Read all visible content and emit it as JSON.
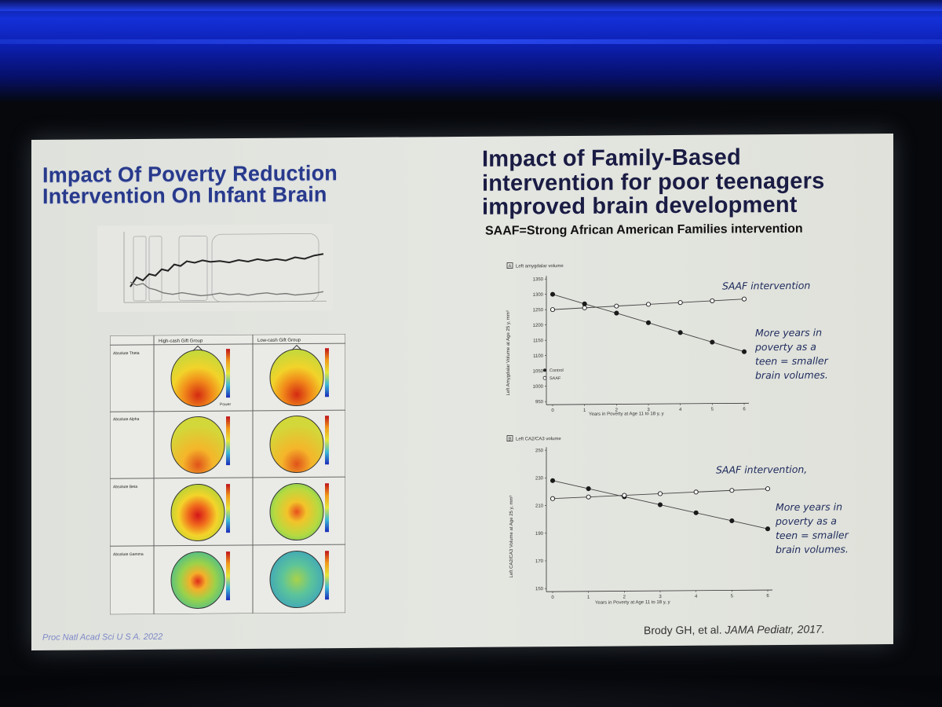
{
  "left_panel": {
    "title_line1": "Impact Of Poverty Reduction",
    "title_line2": "Intervention On Infant Brain",
    "topo_headers": [
      "High-cash Gift Group",
      "Low-cash Gift Group"
    ],
    "topo_rows": [
      "Absolute Theta",
      "Absolute Alpha",
      "Absolute Beta",
      "Absolute Gamma"
    ],
    "power_label": "Power",
    "citation": "Proc Natl Acad Sci U S A. 2022"
  },
  "right_panel": {
    "title_line1": "Impact of Family-Based",
    "title_line2": "intervention for poor teenagers",
    "title_line3": "improved brain development",
    "subtitle": "SAAF=Strong African American Families intervention",
    "citation_authors": "Brody GH, et al.",
    "citation_journal": "JAMA Pediatr,",
    "citation_year": "2017."
  },
  "colors": {
    "left_title": "#283a8c",
    "right_title": "#1a1c44",
    "annotation": "#1d2a5c"
  },
  "chart_data": [
    {
      "type": "line",
      "panel": "A",
      "title": "Left amygdalar volume",
      "xlabel": "Years in Poverty at Age 11 to 18 y, y",
      "ylabel": "Left Amygdalar Volume at Age 25 y, mm³",
      "x": [
        0,
        1,
        2,
        3,
        4,
        5,
        6
      ],
      "ylim": [
        950,
        1350
      ],
      "yticks": [
        950,
        1000,
        1050,
        1100,
        1150,
        1200,
        1250,
        1300,
        1350
      ],
      "series": [
        {
          "name": "Control",
          "marker": "filled",
          "values": [
            1300,
            1268,
            1237,
            1205,
            1172,
            1140,
            1108
          ]
        },
        {
          "name": "SAAF",
          "marker": "open",
          "values": [
            1250,
            1255,
            1260,
            1265,
            1270,
            1275,
            1280
          ]
        }
      ],
      "legend": [
        "Control",
        "SAAF"
      ],
      "annotations": [
        "SAAF intervention",
        "More years in",
        "poverty as a",
        "teen = smaller",
        "brain volumes."
      ]
    },
    {
      "type": "line",
      "panel": "B",
      "title": "Left CA2/CA3 volume",
      "xlabel": "Years in Poverty at Age 11 to 18 y, y",
      "ylabel": "Left CA2/CA3 Volume at Age 25 y, mm³",
      "x": [
        0,
        1,
        2,
        3,
        4,
        5,
        6
      ],
      "ylim": [
        150,
        250
      ],
      "yticks": [
        150,
        170,
        190,
        210,
        230,
        250
      ],
      "series": [
        {
          "name": "Control",
          "marker": "filled",
          "values": [
            228,
            222,
            216,
            210,
            204,
            198,
            192
          ]
        },
        {
          "name": "SAAF",
          "marker": "open",
          "values": [
            215,
            216,
            217,
            218,
            219,
            220,
            221
          ]
        }
      ],
      "annotations": [
        "SAAF intervention,",
        "More years in",
        "poverty as a",
        "teen = smaller",
        "brain volumes."
      ]
    }
  ]
}
